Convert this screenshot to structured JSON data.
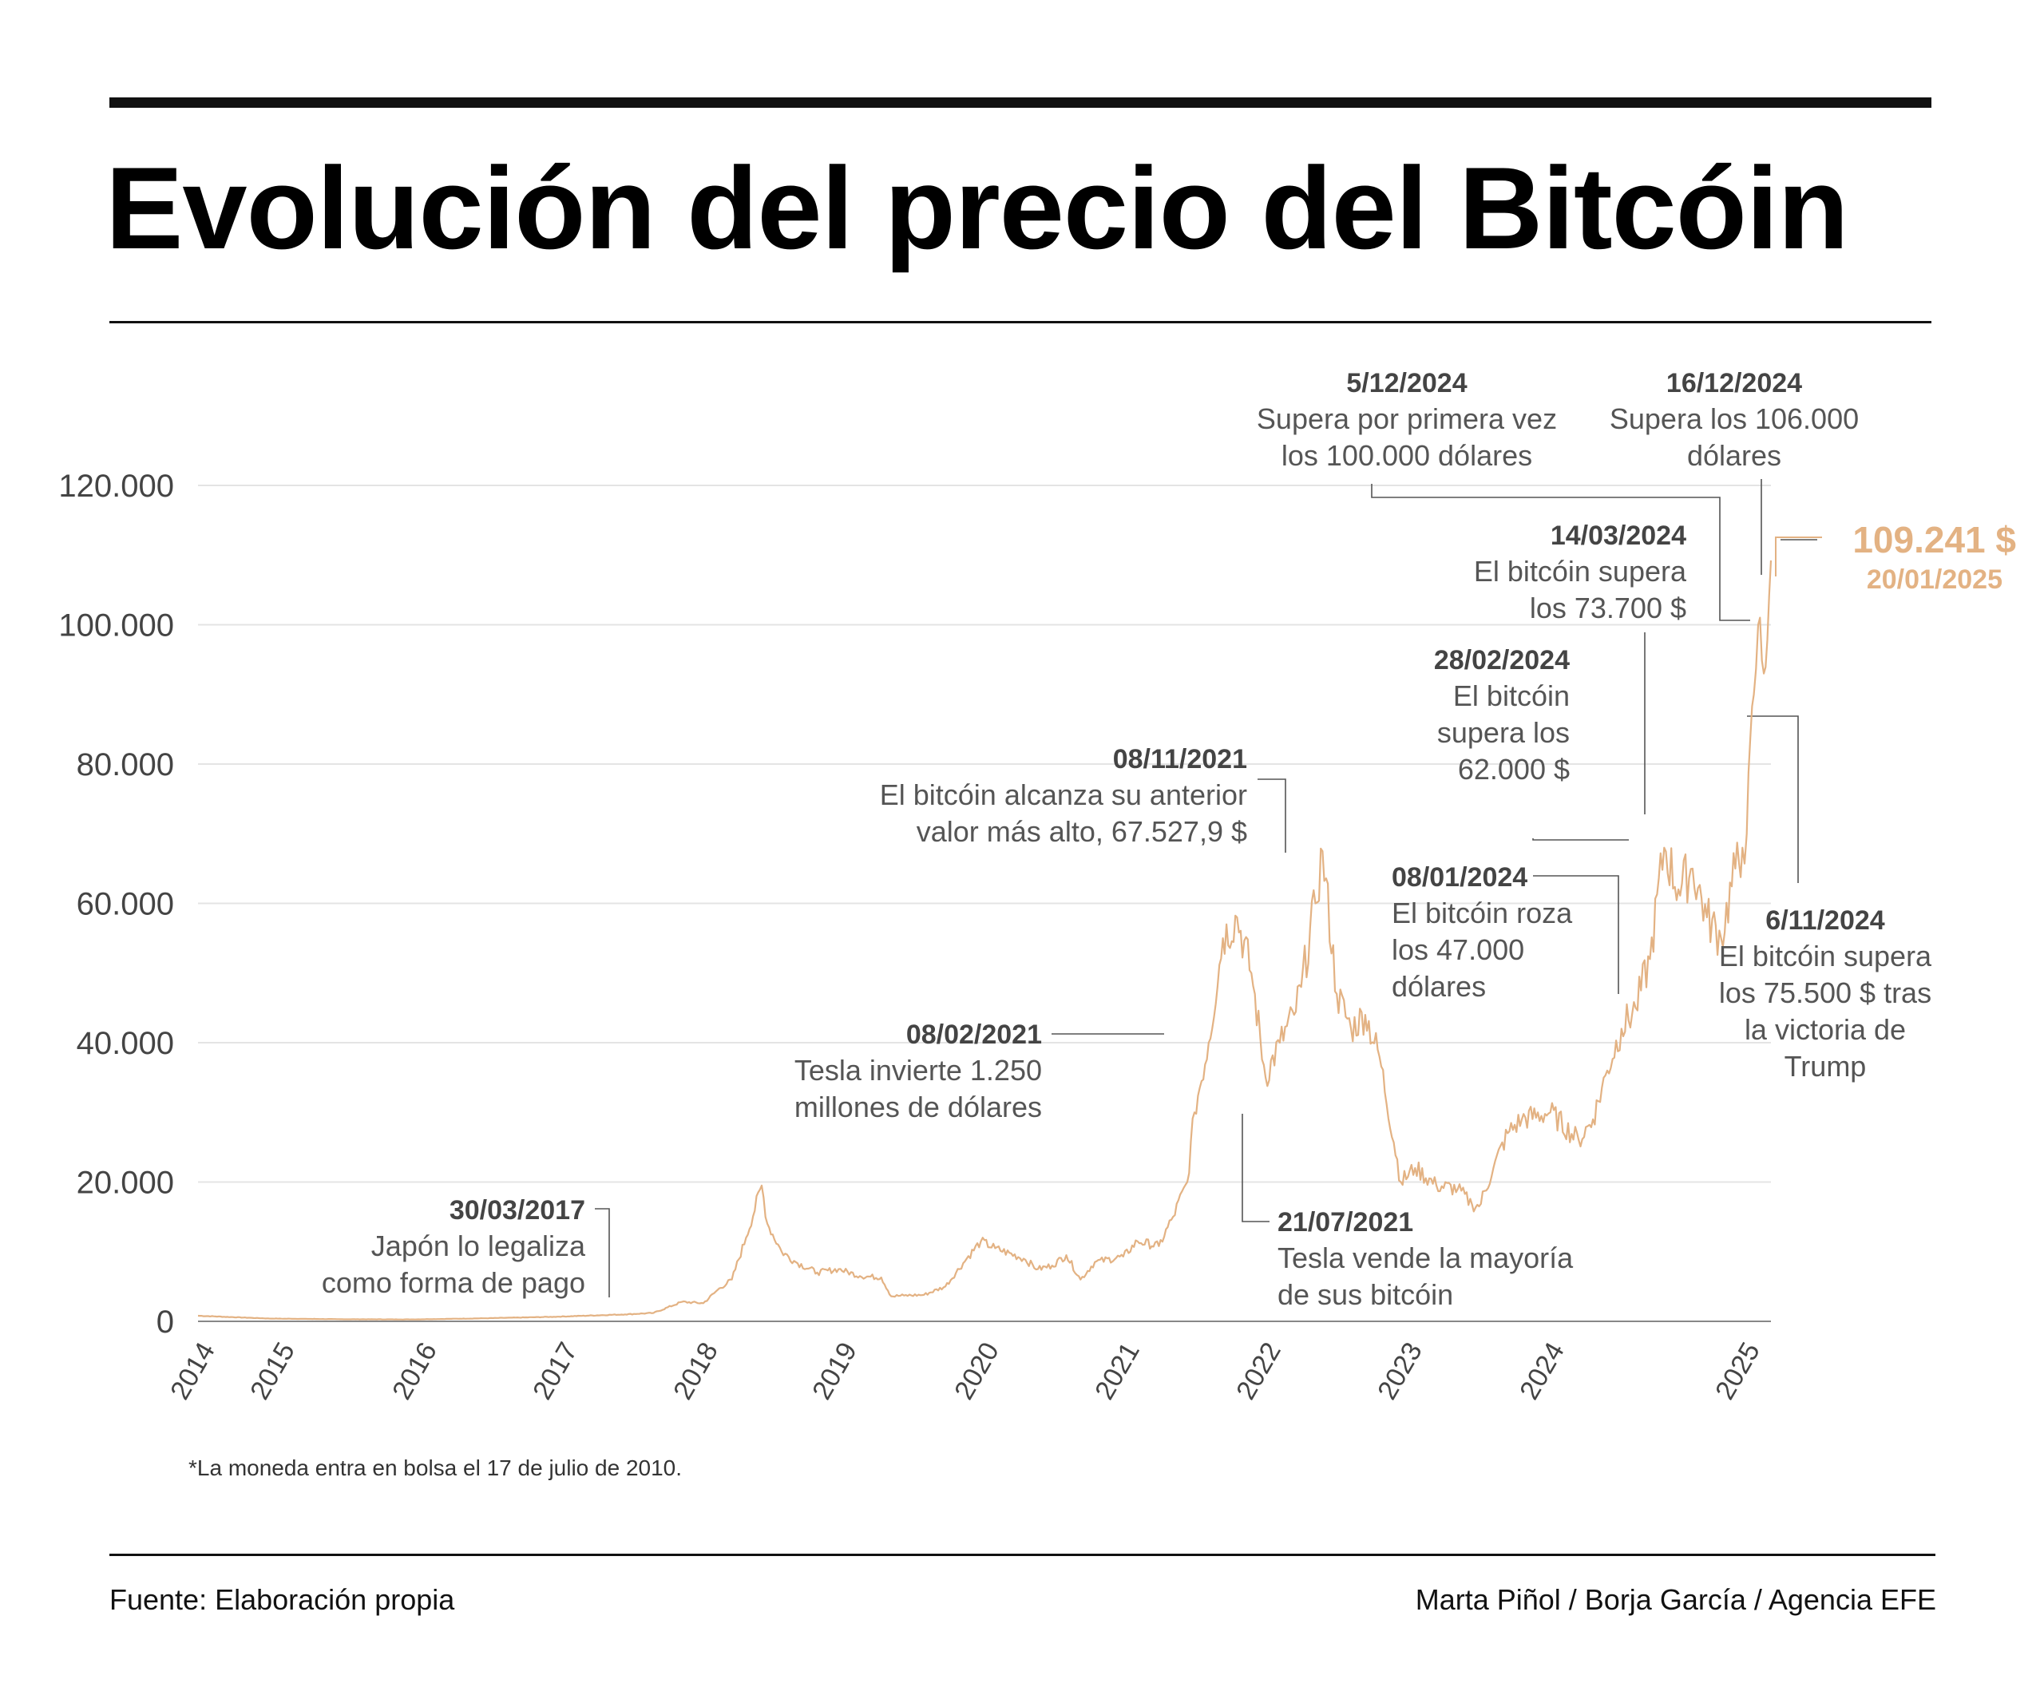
{
  "title": "Evolución del precio del Bitcóin",
  "footnote": "*La moneda entra en bolsa el 17 de julio de 2010.",
  "source": "Fuente: Elaboración propia",
  "credits": "Marta Piñol / Borja García / Agencia EFE",
  "colors": {
    "line": "#E3B283",
    "grid": "#E4E4E4",
    "text": "#444444",
    "rule": "#111111"
  },
  "chart_data": {
    "type": "line",
    "title": "Evolución del precio del Bitcóin",
    "xlabel": "",
    "ylabel": "",
    "ylim": [
      0,
      120000
    ],
    "yticks": [
      0,
      20000,
      40000,
      60000,
      80000,
      100000,
      120000
    ],
    "ytick_labels": [
      "0",
      "20.000",
      "40.000",
      "60.000",
      "80.000",
      "100.000",
      "120.000"
    ],
    "xticks": [
      2014,
      2015,
      2016,
      2017,
      2018,
      2019,
      2020,
      2021,
      2022,
      2023,
      2024,
      2025
    ],
    "grid": true,
    "series": [
      {
        "values_x": [
          2014.0,
          2014.5,
          2015.0,
          2015.5,
          2016.0,
          2016.5,
          2017.0,
          2017.2,
          2017.4,
          2017.55,
          2017.65,
          2017.75,
          2017.85,
          2017.96,
          2018.0,
          2018.1,
          2018.2,
          2018.35,
          2018.5,
          2018.65,
          2018.8,
          2018.87,
          2018.96,
          2019.1,
          2019.25,
          2019.4,
          2019.5,
          2019.6,
          2019.8,
          2019.9,
          2020.0,
          2020.1,
          2020.2,
          2020.3,
          2020.5,
          2020.6,
          2020.75,
          2020.85,
          2020.95,
          2021.0,
          2021.1,
          2021.2,
          2021.3,
          2021.4,
          2021.5,
          2021.6,
          2021.7,
          2021.75,
          2021.85,
          2021.9,
          2022.0,
          2022.1,
          2022.2,
          2022.3,
          2022.45,
          2022.55,
          2022.7,
          2022.85,
          2022.95,
          2023.0,
          2023.1,
          2023.2,
          2023.3,
          2023.5,
          2023.7,
          2023.8,
          2023.9,
          2024.0,
          2024.1,
          2024.2,
          2024.3,
          2024.4,
          2024.5,
          2024.6,
          2024.7,
          2024.8,
          2024.85,
          2024.88,
          2024.93,
          2024.96,
          2025.0,
          2025.05
        ],
        "values_y": [
          800,
          400,
          300,
          270,
          430,
          650,
          1000,
          1200,
          2800,
          2600,
          4500,
          6000,
          12000,
          19500,
          14000,
          10000,
          8500,
          7000,
          7500,
          6500,
          6300,
          3600,
          3700,
          3800,
          5000,
          9000,
          11500,
          10500,
          9000,
          7500,
          8000,
          9500,
          6000,
          8500,
          9300,
          11500,
          10800,
          15000,
          20000,
          30000,
          40000,
          55000,
          58000,
          50000,
          35000,
          40000,
          44000,
          48000,
          60000,
          67500,
          47000,
          42000,
          44000,
          38000,
          20000,
          22000,
          19500,
          19000,
          16800,
          16500,
          22000,
          27000,
          29000,
          30000,
          26000,
          29000,
          36000,
          42000,
          45000,
          52000,
          68000,
          62000,
          65000,
          58000,
          55000,
          65000,
          68000,
          70000,
          90000,
          100000,
          93000,
          109241
        ]
      }
    ],
    "annotations": [
      {
        "date": "30/03/2017",
        "text": [
          "Japón lo legaliza",
          "como forma de pago"
        ]
      },
      {
        "date": "08/02/2021",
        "text": [
          "Tesla invierte 1.250",
          "millones de dólares"
        ]
      },
      {
        "date": "21/07/2021",
        "text": [
          "Tesla vende la mayoría",
          "de sus bitcóin"
        ]
      },
      {
        "date": "08/11/2021",
        "text": [
          "El bitcóin alcanza su anterior",
          "valor más alto, 67.527,9 $"
        ]
      },
      {
        "date": "08/01/2024",
        "text": [
          "El bitcóin roza",
          "los 47.000",
          "dólares"
        ]
      },
      {
        "date": "28/02/2024",
        "text": [
          "El bitcóin",
          "supera los",
          "62.000 $"
        ]
      },
      {
        "date": "14/03/2024",
        "text": [
          "El bitcóin supera",
          "los 73.700 $"
        ]
      },
      {
        "date": "5/12/2024",
        "text": [
          "Supera por primera vez",
          "los 100.000 dólares"
        ]
      },
      {
        "date": "16/12/2024",
        "text": [
          "Supera los 106.000",
          "dólares"
        ]
      },
      {
        "date": "6/11/2024",
        "text": [
          "El bitcóin supera",
          "los 75.500 $ tras",
          "la victoria de",
          "Trump"
        ]
      }
    ],
    "final": {
      "value": "109.241 $",
      "date": "20/01/2025"
    }
  }
}
